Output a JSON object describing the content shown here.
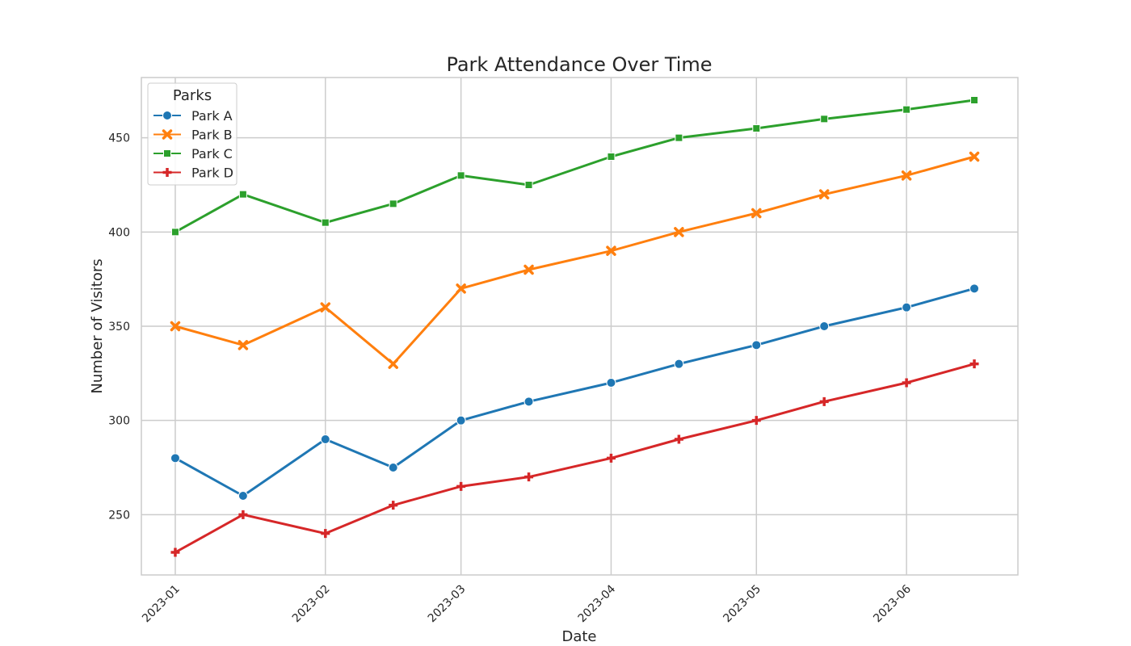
{
  "chart_data": {
    "type": "line",
    "title": "Park Attendance Over Time",
    "xlabel": "Date",
    "ylabel": "Number of Visitors",
    "x": [
      "2023-01-01",
      "2023-01-15",
      "2023-02-01",
      "2023-02-15",
      "2023-03-01",
      "2023-03-15",
      "2023-04-01",
      "2023-04-15",
      "2023-05-01",
      "2023-05-15",
      "2023-06-01",
      "2023-06-15"
    ],
    "x_ticks": [
      "2023-01",
      "2023-02",
      "2023-03",
      "2023-04",
      "2023-05",
      "2023-06"
    ],
    "y_ticks": [
      250,
      300,
      350,
      400,
      450
    ],
    "ylim": [
      218,
      482
    ],
    "grid": true,
    "legend": {
      "title": "Parks",
      "placement": "top-left"
    },
    "series": [
      {
        "name": "Park A",
        "color": "#1f77b4",
        "marker": "circle",
        "values": [
          280,
          260,
          290,
          275,
          300,
          310,
          320,
          330,
          340,
          350,
          360,
          370
        ]
      },
      {
        "name": "Park B",
        "color": "#ff7f0e",
        "marker": "x",
        "values": [
          350,
          340,
          360,
          330,
          370,
          380,
          390,
          400,
          410,
          420,
          430,
          440
        ]
      },
      {
        "name": "Park C",
        "color": "#2ca02c",
        "marker": "square",
        "values": [
          400,
          420,
          405,
          415,
          430,
          425,
          440,
          450,
          455,
          460,
          465,
          470
        ]
      },
      {
        "name": "Park D",
        "color": "#d62728",
        "marker": "plus",
        "values": [
          230,
          250,
          240,
          255,
          265,
          270,
          280,
          290,
          300,
          310,
          320,
          330
        ]
      }
    ]
  }
}
